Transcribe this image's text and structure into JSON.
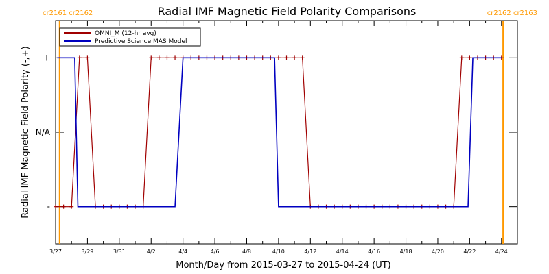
{
  "chart_data": {
    "type": "line",
    "title": "Radial IMF Magnetic Field Polarity Comparisons",
    "xlabel": "Month/Day from 2015-03-27 to 2015-04-24 (UT)",
    "ylabel": "Radial IMF Magnetic Field Polarity (-,+)",
    "xlim": [
      0,
      29
    ],
    "ylim": [
      -1.5,
      1.5
    ],
    "x_tick_labels": [
      "3/27",
      "3/29",
      "3/31",
      "4/2",
      "4/4",
      "4/6",
      "4/8",
      "4/10",
      "4/12",
      "4/14",
      "4/16",
      "4/18",
      "4/20",
      "4/22",
      "4/24"
    ],
    "x_tick_days": [
      0,
      2,
      4,
      6,
      8,
      10,
      12,
      14,
      16,
      18,
      20,
      22,
      24,
      26,
      28
    ],
    "y_ticks": [
      {
        "value": 1,
        "label": "+"
      },
      {
        "value": 0,
        "label": "N/A"
      },
      {
        "value": -1,
        "label": "-"
      }
    ],
    "legend": {
      "placement": "top-left",
      "entries": [
        {
          "name": "OMNI_M (12-hr avg)",
          "color": "#a00000"
        },
        {
          "name": "Predictive Science MAS Model",
          "color": "#0000c0"
        }
      ]
    },
    "series": [
      {
        "name": "OMNI_M (12-hr avg)",
        "color": "#a00000",
        "marker": "plus",
        "x": [
          0.0,
          0.5,
          1.0,
          1.5,
          2.0,
          2.5,
          3.0,
          3.5,
          4.0,
          4.5,
          5.0,
          5.5,
          6.0,
          6.5,
          7.0,
          7.5,
          8.0,
          8.5,
          9.0,
          9.5,
          10.0,
          10.5,
          11.0,
          11.5,
          12.0,
          12.5,
          13.0,
          13.5,
          14.0,
          14.5,
          15.0,
          15.5,
          16.0,
          16.5,
          17.0,
          17.5,
          18.0,
          18.5,
          19.0,
          19.5,
          20.0,
          20.5,
          21.0,
          21.5,
          22.0,
          22.5,
          23.0,
          23.5,
          24.0,
          24.5,
          25.0,
          25.5,
          26.0,
          26.5,
          27.0,
          27.5,
          28.0
        ],
        "y": [
          -1,
          -1,
          -1,
          1,
          1,
          -1,
          -1,
          -1,
          -1,
          -1,
          -1,
          -1,
          1,
          1,
          1,
          1,
          1,
          1,
          1,
          1,
          1,
          1,
          1,
          1,
          1,
          1,
          1,
          1,
          1,
          1,
          1,
          1,
          -1,
          -1,
          -1,
          -1,
          -1,
          -1,
          -1,
          -1,
          -1,
          -1,
          -1,
          -1,
          -1,
          -1,
          -1,
          -1,
          -1,
          -1,
          -1,
          1,
          1,
          1,
          1,
          1,
          1
        ]
      },
      {
        "name": "Predictive Science MAS Model",
        "color": "#0000c0",
        "marker": "none",
        "x": [
          0.1,
          1.2,
          1.4,
          2.0,
          3.0,
          4.0,
          5.0,
          6.0,
          6.5,
          7.0,
          7.5,
          8.0,
          8.5,
          10.0,
          12.0,
          13.75,
          14.0,
          18.0,
          22.0,
          25.9,
          26.2,
          27.0,
          28.0
        ],
        "y": [
          1,
          1,
          -1,
          -1,
          -1,
          -1,
          -1,
          -1,
          -1,
          -1,
          -1,
          1,
          1,
          1,
          1,
          1,
          -1,
          -1,
          -1,
          -1,
          1,
          1,
          1
        ]
      }
    ],
    "vertical_markers": [
      {
        "x": 0.25,
        "label": "cr2161 cr2162",
        "color": "#ff9900",
        "label_side": "left"
      },
      {
        "x": 28.1,
        "label": "cr2162 cr2163",
        "color": "#ff9900",
        "label_side": "right"
      }
    ]
  }
}
